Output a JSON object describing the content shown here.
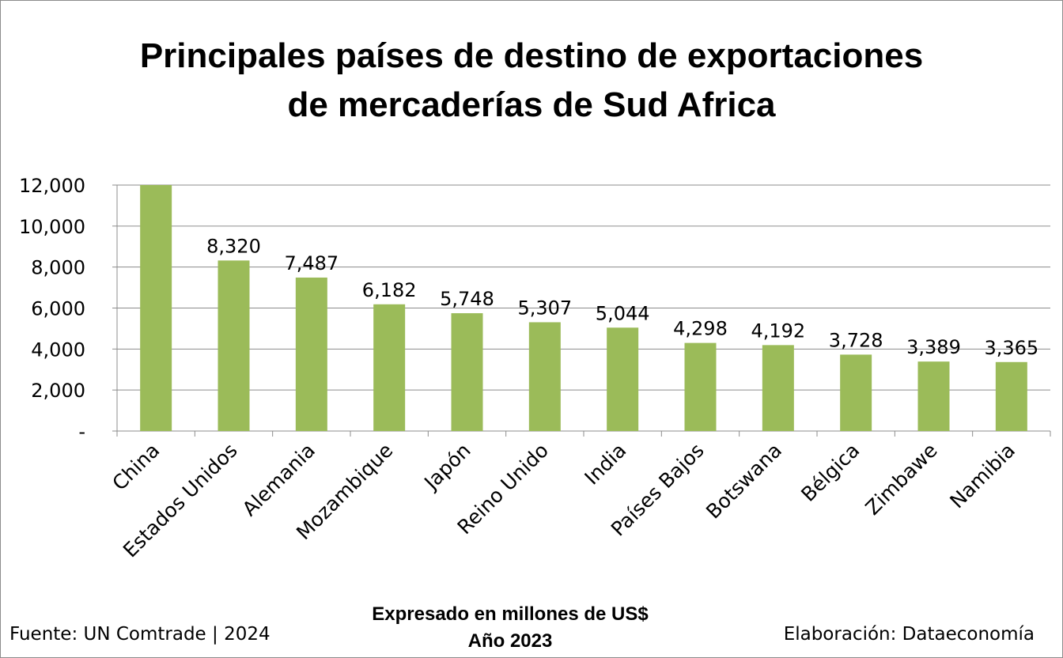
{
  "chart_data": {
    "type": "bar",
    "title_lines": [
      "Principales países de destino de exportaciones",
      "de mercaderías de Sud Africa"
    ],
    "categories": [
      "China",
      "Estados Unidos",
      "Alemania",
      "Mozambique",
      "Japón",
      "Reino Unido",
      "India",
      "Países Bajos",
      "Botswana",
      "Bélgica",
      "Zimbawe",
      "Namibia"
    ],
    "values": [
      12000,
      8320,
      7487,
      6182,
      5748,
      5307,
      5044,
      4298,
      4192,
      3728,
      3389,
      3365
    ],
    "data_labels": [
      "",
      "8,320",
      "7,487",
      "6,182",
      "5,748",
      "5,307",
      "5,044",
      "4,298",
      "4,192",
      "3,728",
      "3,389",
      "3,365"
    ],
    "ylim": [
      0,
      12000
    ],
    "yticks": [
      0,
      2000,
      4000,
      6000,
      8000,
      10000,
      12000
    ],
    "ytick_labels": [
      "-",
      "2,000",
      "4,000",
      "6,000",
      "8,000",
      "10,000",
      "12,000"
    ],
    "grid": true,
    "bar_color": "#9bbb59",
    "xlabel": "",
    "ylabel": ""
  },
  "notes": {
    "unit_line": "Expresado en millones de US$",
    "year_line": "Año 2023",
    "source": "Fuente: UN Comtrade | 2024",
    "credit": "Elaboración: Dataeconomía"
  }
}
